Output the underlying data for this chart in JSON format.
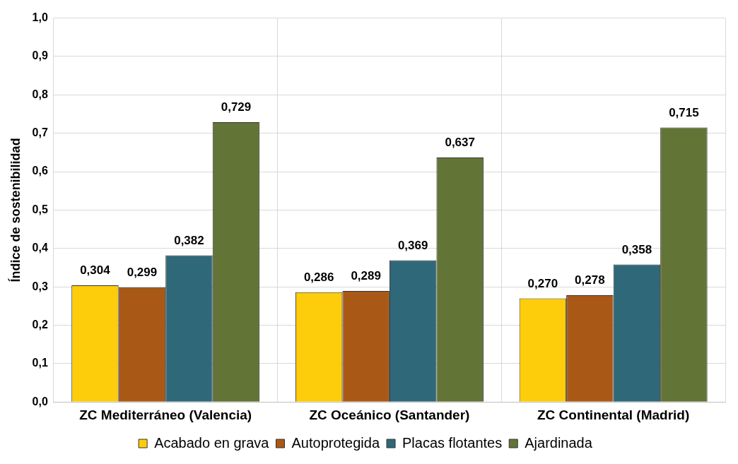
{
  "chart_data": {
    "type": "bar",
    "ylabel": "Índice de sostenibilidad",
    "categories": [
      "ZC Mediterráneo (Valencia)",
      "ZC Oceánico (Santander)",
      "ZC Continental (Madrid)"
    ],
    "series": [
      {
        "name": "Acabado en grava",
        "color": "#fdcc0a",
        "values": [
          0.304,
          0.286,
          0.27
        ],
        "value_labels": [
          "0,304",
          "0,286",
          "0,270"
        ]
      },
      {
        "name": "Autoprotegida",
        "color": "#a95915",
        "values": [
          0.299,
          0.289,
          0.278
        ],
        "value_labels": [
          "0,299",
          "0,289",
          "0,278"
        ]
      },
      {
        "name": "Placas flotantes",
        "color": "#2f6878",
        "values": [
          0.382,
          0.369,
          0.358
        ],
        "value_labels": [
          "0,382",
          "0,369",
          "0,358"
        ]
      },
      {
        "name": "Ajardinada",
        "color": "#637536",
        "values": [
          0.729,
          0.637,
          0.715
        ],
        "value_labels": [
          "0,729",
          "0,637",
          "0,715"
        ]
      }
    ],
    "ylim": [
      0,
      1
    ],
    "yticks": [
      {
        "value": 0,
        "label": "0,0"
      },
      {
        "value": 0.1,
        "label": "0,1"
      },
      {
        "value": 0.2,
        "label": "0,2"
      },
      {
        "value": 0.3,
        "label": "0,3"
      },
      {
        "value": 0.4,
        "label": "0,4"
      },
      {
        "value": 0.5,
        "label": "0,5"
      },
      {
        "value": 0.6,
        "label": "0,6"
      },
      {
        "value": 0.7,
        "label": "0,7"
      },
      {
        "value": 0.8,
        "label": "0,8"
      },
      {
        "value": 0.9,
        "label": "0,9"
      },
      {
        "value": 1,
        "label": "1,0"
      }
    ],
    "grid": true,
    "legend": "bottom"
  }
}
